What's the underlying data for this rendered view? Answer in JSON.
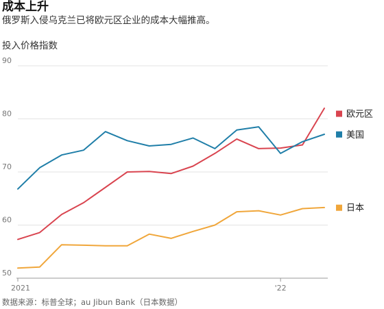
{
  "header": {
    "title": "成本上升",
    "subtitle": "俄罗斯入侵乌克兰已将欧元区企业的成本大幅推高。"
  },
  "footer": {
    "source": "数据来源：标普全球；au Jibun Bank（日本数据）"
  },
  "colors": {
    "eurozone": "#d9444f",
    "us": "#1f7ea8",
    "japan": "#f0a63a",
    "grid": "#e3e3e3",
    "axis": "#999999"
  },
  "chart_data": {
    "type": "line",
    "title": "成本上升",
    "subtitle": "俄罗斯入侵乌克兰已将欧元区企业的成本大幅推高。",
    "ylabel": "投入价格指数",
    "xlabel": "",
    "ylim": [
      50,
      90
    ],
    "yticks": [
      50,
      60,
      70,
      80,
      90
    ],
    "grid": true,
    "legend_position": "right",
    "x": [
      "2021-01",
      "2021-02",
      "2021-03",
      "2021-04",
      "2021-05",
      "2021-06",
      "2021-07",
      "2021-08",
      "2021-09",
      "2021-10",
      "2021-11",
      "2021-12",
      "2022-01",
      "2022-02",
      "2022-03"
    ],
    "xticks": [
      {
        "label": "2021",
        "index": 0
      },
      {
        "label": "'22",
        "index": 12
      }
    ],
    "series": [
      {
        "name": "欧元区",
        "color": "#d9444f",
        "values": [
          57.3,
          58.6,
          62.0,
          64.2,
          67.1,
          70.0,
          70.1,
          69.7,
          71.1,
          73.5,
          76.2,
          74.4,
          74.5,
          75.1,
          82.0
        ]
      },
      {
        "name": "美国",
        "color": "#1f7ea8",
        "values": [
          66.8,
          70.8,
          73.2,
          74.1,
          77.6,
          75.9,
          74.9,
          75.2,
          76.4,
          74.4,
          77.9,
          78.5,
          73.5,
          75.7,
          77.1
        ]
      },
      {
        "name": "日本",
        "color": "#f0a63a",
        "values": [
          51.9,
          52.1,
          56.3,
          56.2,
          56.1,
          56.1,
          58.3,
          57.5,
          58.8,
          60.0,
          62.5,
          62.7,
          61.9,
          63.1,
          63.3
        ]
      }
    ]
  }
}
